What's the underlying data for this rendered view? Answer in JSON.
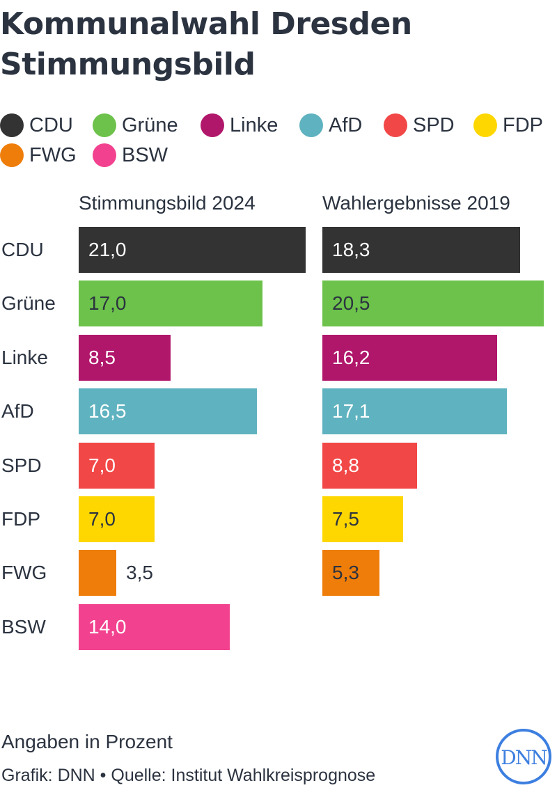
{
  "title_line1": "Kommunalwahl Dresden",
  "title_line2": "Stimmungsbild",
  "legend": [
    {
      "label": "CDU",
      "color": "#333333"
    },
    {
      "label": "Grüne",
      "color": "#6cc24a"
    },
    {
      "label": "Linke",
      "color": "#b0176b"
    },
    {
      "label": "AfD",
      "color": "#5fb2bf"
    },
    {
      "label": "SPD",
      "color": "#f24747"
    },
    {
      "label": "FDP",
      "color": "#ffd700"
    },
    {
      "label": "FWG",
      "color": "#ef7d0a"
    },
    {
      "label": "BSW",
      "color": "#f2428f"
    }
  ],
  "note": "Angaben in Prozent",
  "credit": "Grafik: DNN • Quelle: Institut Wahlkreisprognose",
  "logo_text": "DNN",
  "chart_data": {
    "type": "bar",
    "orientation": "horizontal",
    "categories": [
      "CDU",
      "Grüne",
      "Linke",
      "AfD",
      "SPD",
      "FDP",
      "FWG",
      "BSW"
    ],
    "colors": [
      "#333333",
      "#6cc24a",
      "#b0176b",
      "#5fb2bf",
      "#f24747",
      "#ffd700",
      "#ef7d0a",
      "#f2428f"
    ],
    "series": [
      {
        "name": "Stimmungsbild 2024",
        "values": [
          21.0,
          17.0,
          8.5,
          16.5,
          7.0,
          7.0,
          3.5,
          14.0
        ],
        "labels": [
          "21,0",
          "17,0",
          "8,5",
          "16,5",
          "7,0",
          "7,0",
          "3,5",
          "14,0"
        ]
      },
      {
        "name": "Wahlergebnisse 2019",
        "values": [
          18.3,
          20.5,
          16.2,
          17.1,
          8.8,
          7.5,
          5.3,
          null
        ],
        "labels": [
          "18,3",
          "20,5",
          "16,2",
          "17,1",
          "8,8",
          "7,5",
          "5,3",
          ""
        ]
      }
    ],
    "value_label_colors": [
      "#ffffff",
      "#2b3340",
      "#ffffff",
      "#ffffff",
      "#ffffff",
      "#2b3340",
      "#2b3340",
      "#ffffff"
    ],
    "unit": "Prozent",
    "grid": false,
    "legend_position": "top"
  }
}
